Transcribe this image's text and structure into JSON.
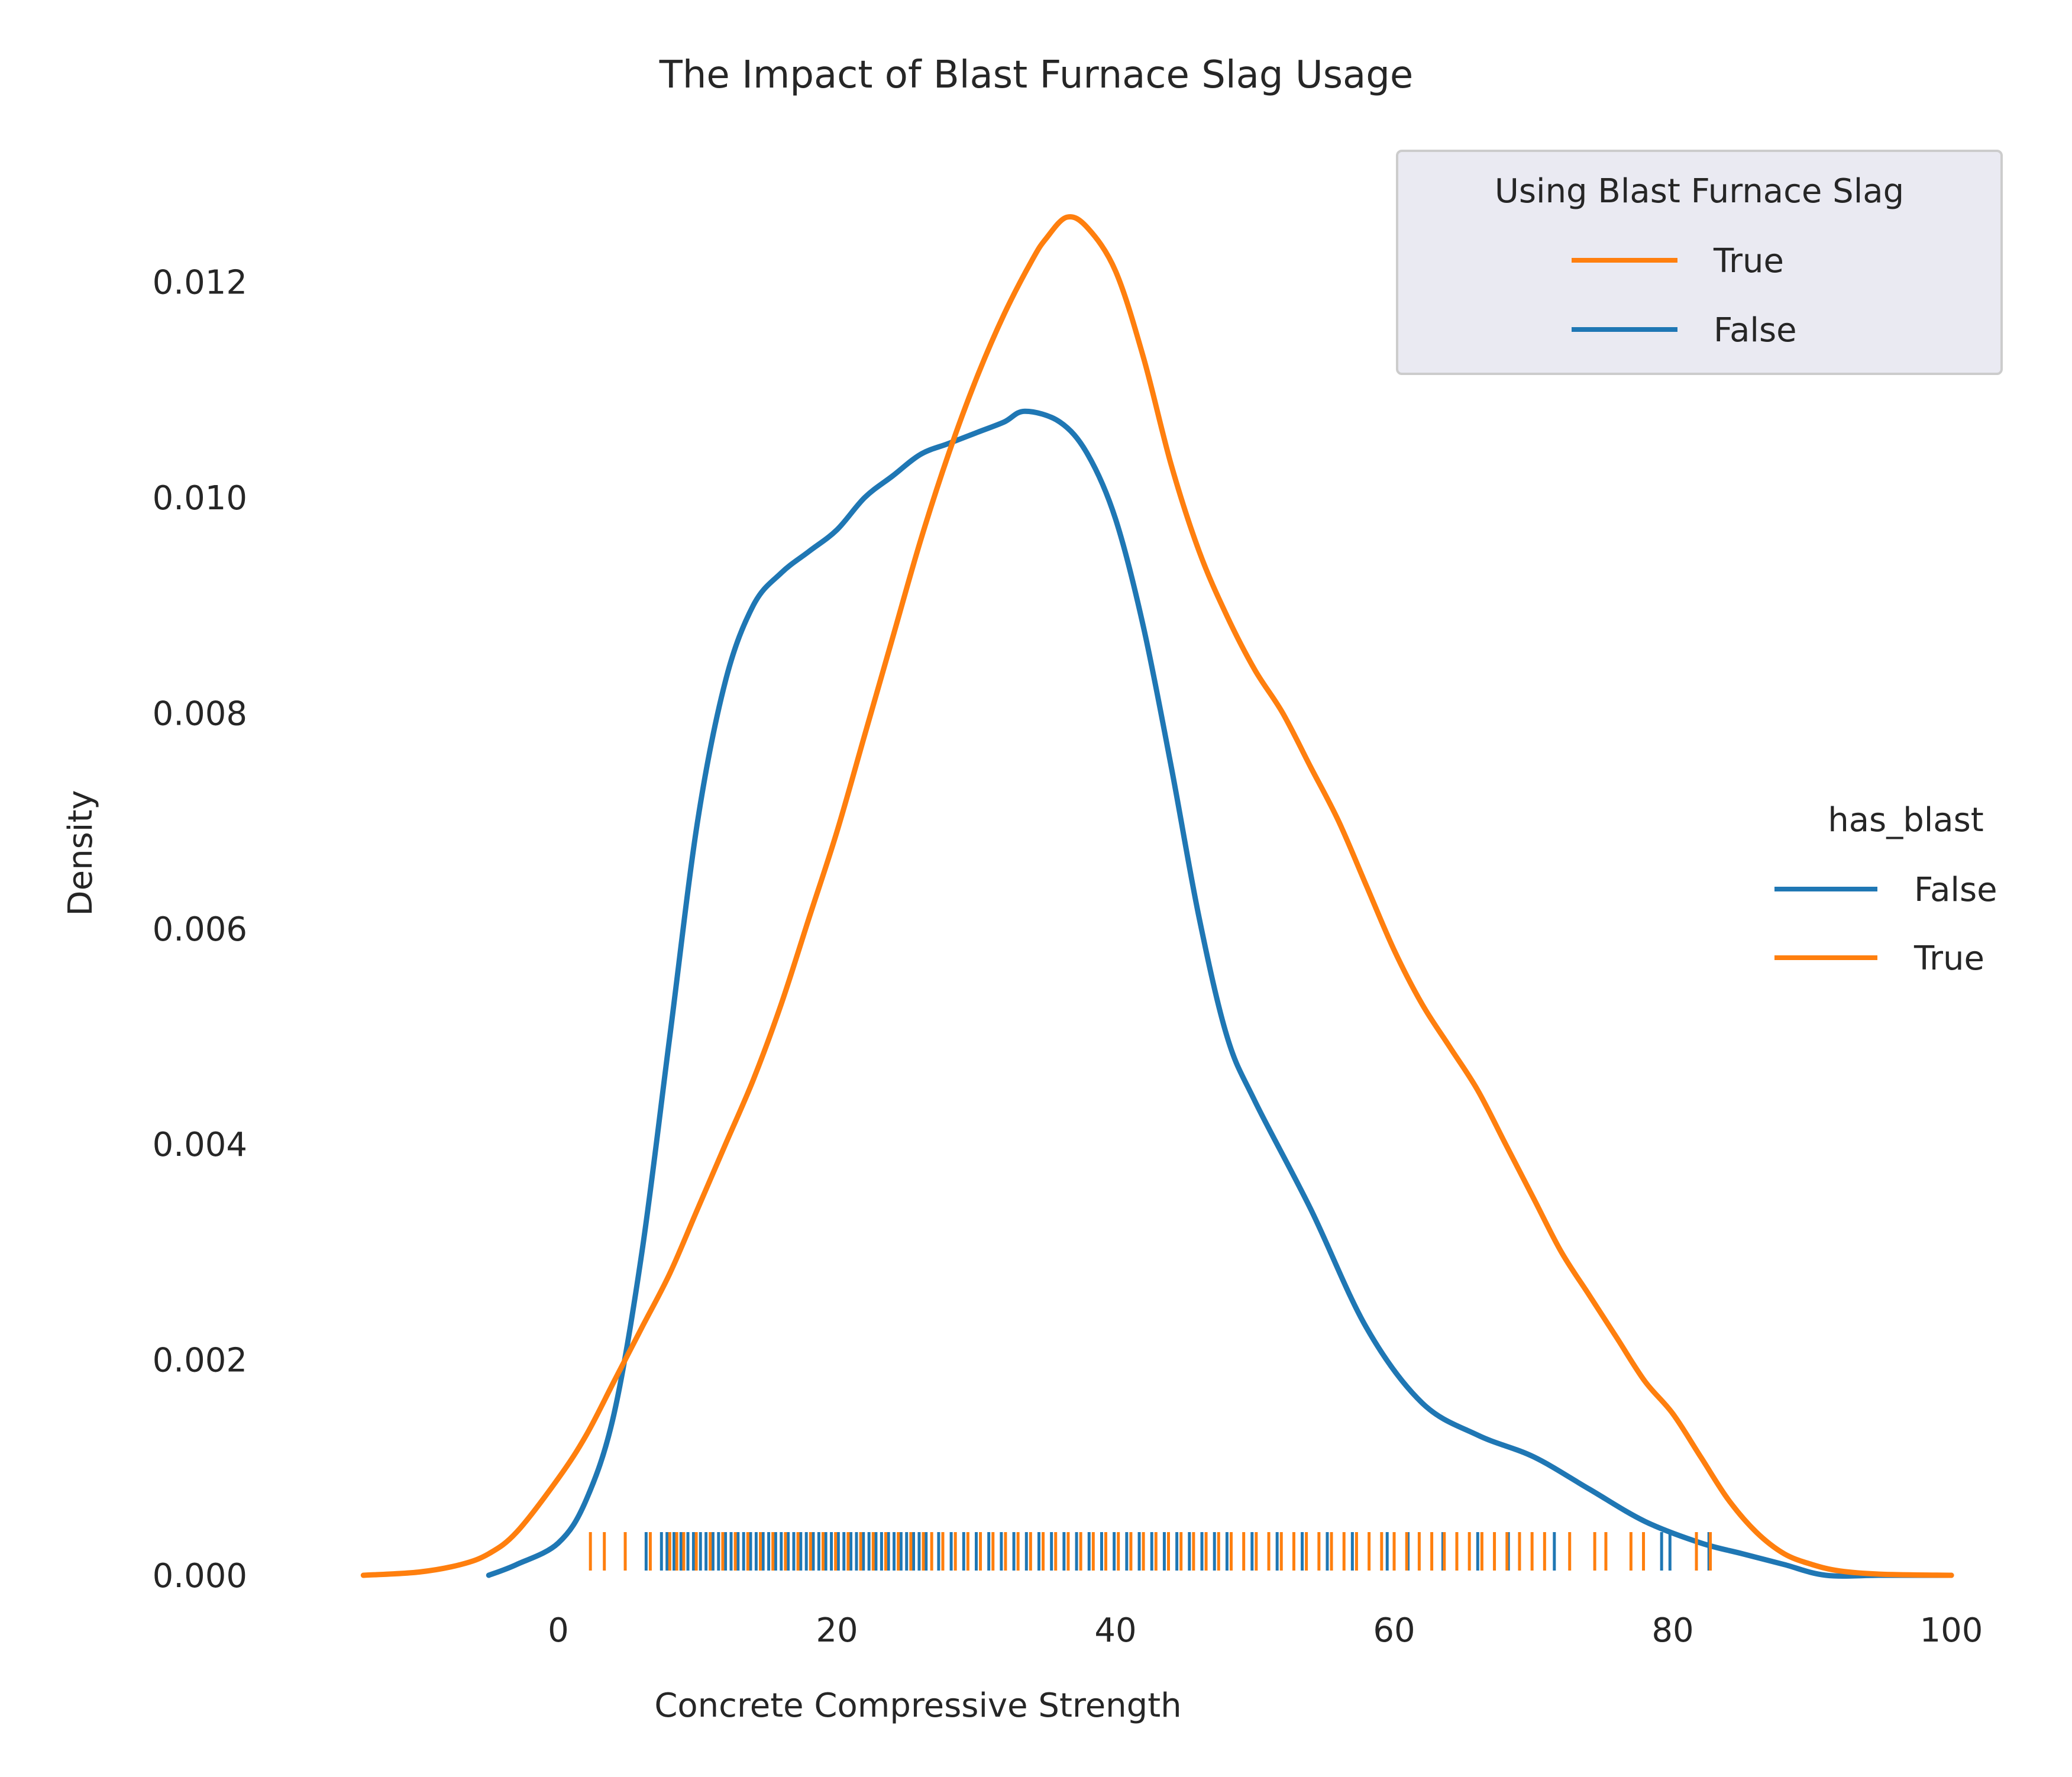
{
  "chart_data": {
    "type": "line",
    "subtype": "kde-with-rug",
    "title": "The Impact of Blast Furnace Slag Usage",
    "xlabel": "Concrete Compressive Strength",
    "ylabel": "Density",
    "xlim": [
      -14,
      100
    ],
    "ylim": [
      0,
      0.0136
    ],
    "xticks": [
      0,
      20,
      40,
      60,
      80,
      100
    ],
    "yticks": [
      0.0,
      0.002,
      0.004,
      0.006,
      0.008,
      0.01,
      0.012
    ],
    "xtick_labels": [
      "0",
      "20",
      "40",
      "60",
      "80",
      "100"
    ],
    "ytick_labels": [
      "0.000",
      "0.002",
      "0.004",
      "0.006",
      "0.008",
      "0.010",
      "0.012"
    ],
    "grid": false,
    "colors": {
      "false": "#1f77b4",
      "true": "#ff7f0e",
      "text": "#262626",
      "legend_face": "#eaeaf2"
    },
    "legends": [
      {
        "title": "Using Blast Furnace Slag",
        "placement": "top-right",
        "entries": [
          {
            "label": "True",
            "color": "#ff7f0e"
          },
          {
            "label": "False",
            "color": "#1f77b4"
          }
        ]
      },
      {
        "title": "has_blast",
        "placement": "center-right",
        "entries": [
          {
            "label": "False",
            "color": "#1f77b4"
          },
          {
            "label": "True",
            "color": "#ff7f0e"
          }
        ]
      }
    ],
    "series": [
      {
        "name": "False",
        "color": "#1f77b4",
        "x": [
          -5,
          -3,
          0,
          2,
          4,
          6,
          8,
          10,
          12,
          14,
          16,
          18,
          20,
          22,
          24,
          26,
          28,
          30,
          32,
          33.5,
          36,
          38,
          40,
          42,
          44,
          46,
          48,
          50,
          54,
          58,
          62,
          66,
          70,
          74,
          78,
          82,
          85,
          88,
          91,
          95,
          100
        ],
        "y": [
          0.0,
          0.0001,
          0.0003,
          0.0007,
          0.0015,
          0.003,
          0.005,
          0.007,
          0.0083,
          0.009,
          0.0093,
          0.0095,
          0.0097,
          0.01,
          0.0102,
          0.0104,
          0.0105,
          0.0106,
          0.0107,
          0.0108,
          0.0107,
          0.0104,
          0.0098,
          0.0088,
          0.0075,
          0.0061,
          0.005,
          0.0044,
          0.0034,
          0.0023,
          0.0016,
          0.0013,
          0.0011,
          0.0008,
          0.0005,
          0.0003,
          0.0002,
          0.0001,
          0.0,
          0.0,
          0.0
        ]
      },
      {
        "name": "True",
        "color": "#ff7f0e",
        "x": [
          -14,
          -10,
          -7,
          -5,
          -3,
          0,
          2,
          4,
          6,
          8,
          10,
          12,
          14,
          16,
          18,
          20,
          22,
          24,
          26,
          28,
          30,
          32,
          34,
          35,
          36.5,
          38,
          40,
          42,
          44,
          46,
          48,
          50,
          52,
          54,
          56,
          58,
          60,
          62,
          64,
          66,
          68,
          70,
          72,
          74,
          76,
          78,
          80,
          82,
          84,
          86,
          88,
          90,
          92,
          95,
          100
        ],
        "y": [
          0.0,
          3e-05,
          0.0001,
          0.0002,
          0.0004,
          0.0009,
          0.0013,
          0.0018,
          0.0023,
          0.0028,
          0.0034,
          0.004,
          0.0046,
          0.0053,
          0.0061,
          0.0069,
          0.0078,
          0.0087,
          0.0096,
          0.0104,
          0.0111,
          0.0117,
          0.0122,
          0.0124,
          0.0126,
          0.0125,
          0.0121,
          0.0113,
          0.0103,
          0.0095,
          0.0089,
          0.0084,
          0.008,
          0.0075,
          0.007,
          0.0064,
          0.0058,
          0.0053,
          0.0049,
          0.0045,
          0.004,
          0.0035,
          0.003,
          0.0026,
          0.0022,
          0.0018,
          0.0015,
          0.0011,
          0.0007,
          0.0004,
          0.0002,
          0.0001,
          4e-05,
          1e-05,
          0.0
        ]
      }
    ],
    "rug": [
      {
        "name": "False",
        "color": "#1f77b4",
        "values": [
          6.3,
          7.4,
          7.8,
          8.3,
          8.8,
          9.3,
          9.7,
          10.2,
          10.6,
          11.1,
          11.5,
          12.0,
          12.4,
          12.9,
          13.3,
          13.8,
          14.2,
          14.7,
          15.1,
          15.6,
          16.0,
          16.5,
          16.9,
          17.4,
          17.8,
          18.3,
          18.7,
          19.2,
          19.6,
          20.1,
          20.5,
          21.0,
          21.4,
          21.9,
          22.3,
          22.8,
          23.2,
          23.7,
          24.1,
          24.6,
          25.0,
          25.5,
          25.9,
          26.4,
          27.3,
          28.2,
          29.1,
          30.0,
          30.9,
          31.8,
          32.7,
          33.6,
          34.5,
          35.4,
          36.3,
          37.2,
          38.1,
          39.0,
          39.9,
          40.8,
          41.7,
          42.6,
          43.5,
          44.4,
          45.3,
          46.2,
          47.1,
          48.0,
          49.8,
          51.6,
          53.4,
          55.2,
          57.0,
          59.5,
          61.0,
          63.5,
          66.0,
          68.2,
          71.5,
          79.2,
          79.8,
          82.6
        ]
      },
      {
        "name": "True",
        "color": "#ff7f0e",
        "values": [
          2.3,
          3.3,
          4.8,
          6.6,
          8.0,
          8.5,
          9.0,
          9.9,
          10.9,
          11.8,
          12.7,
          13.6,
          14.5,
          15.4,
          16.3,
          17.2,
          18.1,
          19.0,
          19.9,
          20.8,
          21.7,
          22.6,
          23.5,
          24.4,
          25.3,
          26.2,
          26.8,
          27.6,
          28.5,
          29.4,
          30.3,
          31.2,
          32.1,
          33.0,
          33.9,
          34.8,
          35.7,
          36.6,
          37.5,
          38.4,
          39.3,
          40.2,
          41.1,
          42.0,
          42.9,
          43.8,
          44.7,
          45.6,
          46.5,
          47.4,
          48.3,
          49.2,
          50.1,
          51.0,
          51.9,
          52.8,
          53.7,
          54.6,
          55.5,
          56.4,
          57.3,
          58.2,
          59.1,
          60.0,
          60.9,
          61.8,
          62.7,
          63.6,
          64.5,
          65.4,
          66.3,
          67.2,
          68.1,
          69.0,
          69.9,
          70.8,
          72.6,
          74.4,
          75.2,
          77.0,
          77.9,
          81.7,
          82.7
        ]
      }
    ]
  }
}
